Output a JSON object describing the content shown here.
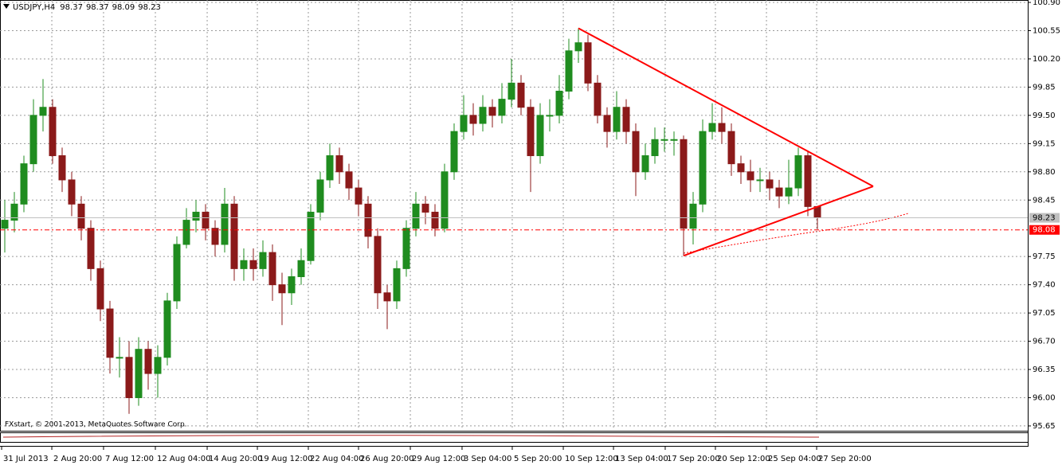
{
  "chart_data": {
    "type": "candlestick",
    "symbol": "USDJPY,H4",
    "copyright": "FXstart, © 2001-2013, MetaQuotes Software Corp.",
    "bull_color": "#1f8c1f",
    "bear_color": "#8b1a1a",
    "open": [
      98.1,
      98.2,
      98.4,
      98.9,
      99.5,
      99.6,
      99.0,
      98.7,
      98.4,
      98.1,
      97.6,
      97.1,
      96.5,
      96.5,
      96.0,
      96.6,
      96.3,
      96.5,
      97.2,
      97.9,
      98.2,
      98.3,
      98.1,
      97.9,
      98.4,
      97.6,
      97.7,
      97.6,
      97.8,
      97.4,
      97.3,
      97.5,
      97.7,
      98.3,
      98.7,
      99.0,
      98.8,
      98.6,
      98.4,
      98.0,
      97.3,
      97.2,
      97.6,
      98.1,
      98.4,
      98.3,
      98.1,
      98.8,
      99.3,
      99.5,
      99.4,
      99.6,
      99.5,
      99.7,
      99.9,
      99.6,
      99.0,
      99.5,
      99.5,
      99.8,
      100.3,
      100.4,
      99.9,
      99.5,
      99.3,
      99.6,
      99.3,
      98.8,
      99.0,
      99.2,
      99.2,
      99.2,
      98.1,
      98.4,
      99.3,
      99.4,
      99.3,
      98.9,
      98.8,
      98.7,
      98.7,
      98.6,
      98.5,
      98.6,
      99.0,
      98.37
    ],
    "high": [
      98.45,
      98.55,
      99.0,
      99.7,
      99.95,
      99.7,
      99.1,
      98.8,
      98.5,
      98.2,
      97.7,
      97.2,
      96.75,
      96.7,
      96.75,
      96.7,
      96.65,
      97.3,
      98.0,
      98.35,
      98.45,
      98.4,
      98.2,
      98.6,
      98.5,
      97.85,
      97.85,
      97.95,
      97.9,
      97.55,
      97.6,
      97.85,
      98.4,
      98.8,
      99.15,
      99.1,
      98.9,
      98.7,
      98.5,
      98.1,
      97.4,
      97.7,
      98.2,
      98.55,
      98.5,
      98.4,
      98.9,
      99.4,
      99.75,
      99.65,
      99.75,
      99.7,
      99.9,
      100.2,
      100.0,
      99.7,
      99.65,
      99.7,
      100.0,
      100.45,
      100.58,
      100.5,
      100.0,
      99.6,
      99.8,
      99.7,
      99.4,
      99.15,
      99.35,
      99.35,
      99.3,
      99.25,
      98.55,
      99.45,
      99.65,
      99.6,
      99.4,
      99.0,
      98.95,
      98.85,
      98.8,
      98.7,
      98.95,
      99.1,
      99.05,
      98.37
    ],
    "low": [
      97.8,
      98.05,
      98.3,
      98.8,
      99.3,
      98.9,
      98.55,
      98.25,
      97.95,
      97.45,
      96.95,
      96.3,
      96.25,
      95.8,
      95.9,
      96.1,
      96.0,
      96.4,
      97.1,
      97.85,
      98.05,
      97.95,
      97.75,
      97.8,
      97.45,
      97.45,
      97.45,
      97.5,
      97.2,
      96.9,
      97.15,
      97.4,
      97.65,
      98.2,
      98.6,
      98.65,
      98.45,
      98.25,
      97.85,
      97.1,
      96.85,
      97.1,
      97.5,
      98.0,
      98.15,
      98.0,
      98.05,
      98.7,
      99.2,
      99.25,
      99.3,
      99.35,
      99.4,
      99.6,
      99.5,
      98.55,
      98.9,
      99.3,
      99.4,
      99.7,
      100.15,
      99.8,
      99.4,
      99.1,
      99.2,
      99.15,
      98.5,
      98.7,
      98.9,
      99.05,
      99.0,
      97.76,
      97.9,
      98.3,
      99.2,
      99.15,
      98.75,
      98.65,
      98.55,
      98.55,
      98.45,
      98.35,
      98.4,
      98.5,
      98.25,
      98.09
    ],
    "close": [
      98.2,
      98.4,
      98.9,
      99.5,
      99.6,
      99.0,
      98.7,
      98.4,
      98.1,
      97.6,
      97.1,
      96.5,
      96.5,
      96.0,
      96.6,
      96.3,
      96.5,
      97.2,
      97.9,
      98.2,
      98.3,
      98.1,
      97.9,
      98.4,
      97.6,
      97.7,
      97.6,
      97.8,
      97.4,
      97.3,
      97.5,
      97.7,
      98.3,
      98.7,
      99.0,
      98.8,
      98.6,
      98.4,
      98.0,
      97.3,
      97.2,
      97.6,
      98.1,
      98.4,
      98.3,
      98.1,
      98.8,
      99.3,
      99.5,
      99.4,
      99.6,
      99.5,
      99.7,
      99.9,
      99.6,
      99.0,
      99.5,
      99.5,
      99.8,
      100.3,
      100.4,
      99.9,
      99.5,
      99.3,
      99.6,
      99.3,
      98.8,
      99.0,
      99.2,
      99.2,
      99.2,
      98.1,
      98.4,
      99.3,
      99.4,
      99.3,
      98.9,
      98.8,
      98.7,
      98.7,
      98.6,
      98.5,
      98.6,
      99.0,
      98.37,
      98.23
    ],
    "xlim": [
      -0.5,
      107
    ],
    "ylim": [
      95.6,
      100.93
    ],
    "yticks": [
      {
        "value": 100.9,
        "label": "100.90"
      },
      100.55,
      {
        "value": 100.2,
        "label": "100.20"
      },
      99.85,
      {
        "value": 99.5,
        "label": "99.50"
      },
      99.15,
      {
        "value": 98.8,
        "label": "98.80"
      },
      98.45,
      97.75,
      {
        "value": 97.4,
        "label": "97.40"
      },
      97.05,
      {
        "value": 96.7,
        "label": "96.70"
      },
      96.35,
      {
        "value": 96,
        "label": "96.00"
      },
      95.65
    ],
    "xticks": [
      {
        "value": -0.33,
        "label": "31 Jul 2013"
      },
      {
        "value": 4.92,
        "label": "2 Aug 20:00"
      },
      {
        "value": 10.33,
        "label": "7 Aug 12:00"
      },
      {
        "value": 15.75,
        "label": "12 Aug 04:00"
      },
      {
        "value": 21.17,
        "label": "14 Aug 20:00"
      },
      {
        "value": 26.42,
        "label": "19 Aug 12:00"
      },
      {
        "value": 31.75,
        "label": "22 Aug 04:00"
      },
      {
        "value": 37,
        "label": "26 Aug 20:00"
      },
      {
        "value": 42.42,
        "label": "29 Aug 12:00"
      },
      {
        "value": 47.83,
        "label": "3 Sep 04:00"
      },
      {
        "value": 53.08,
        "label": "5 Sep 20:00"
      },
      {
        "value": 58.42,
        "label": "10 Sep 12:00"
      },
      {
        "value": 63.67,
        "label": "13 Sep 04:00"
      },
      {
        "value": 69.08,
        "label": "17 Sep 20:00"
      },
      {
        "value": 74.33,
        "label": "20 Sep 12:00"
      },
      {
        "value": 79.67,
        "label": "25 Sep 04:00"
      },
      {
        "value": 84.92,
        "label": "27 Sep 20:00"
      }
    ],
    "grid": true,
    "price_line": {
      "value": 98.23,
      "color": "#c0c0c0"
    },
    "order_line": {
      "value": 98.08,
      "color": "#ff0000"
    },
    "trendlines": [
      {
        "color": "#ff0000",
        "points": [
          {
            "x": 60,
            "y": 100.58
          },
          {
            "x": 90.83,
            "y": 98.62
          }
        ]
      },
      {
        "color": "#ff0000",
        "points": [
          {
            "x": 71,
            "y": 97.76
          },
          {
            "x": 90.83,
            "y": 98.62
          }
        ]
      }
    ]
  }
}
